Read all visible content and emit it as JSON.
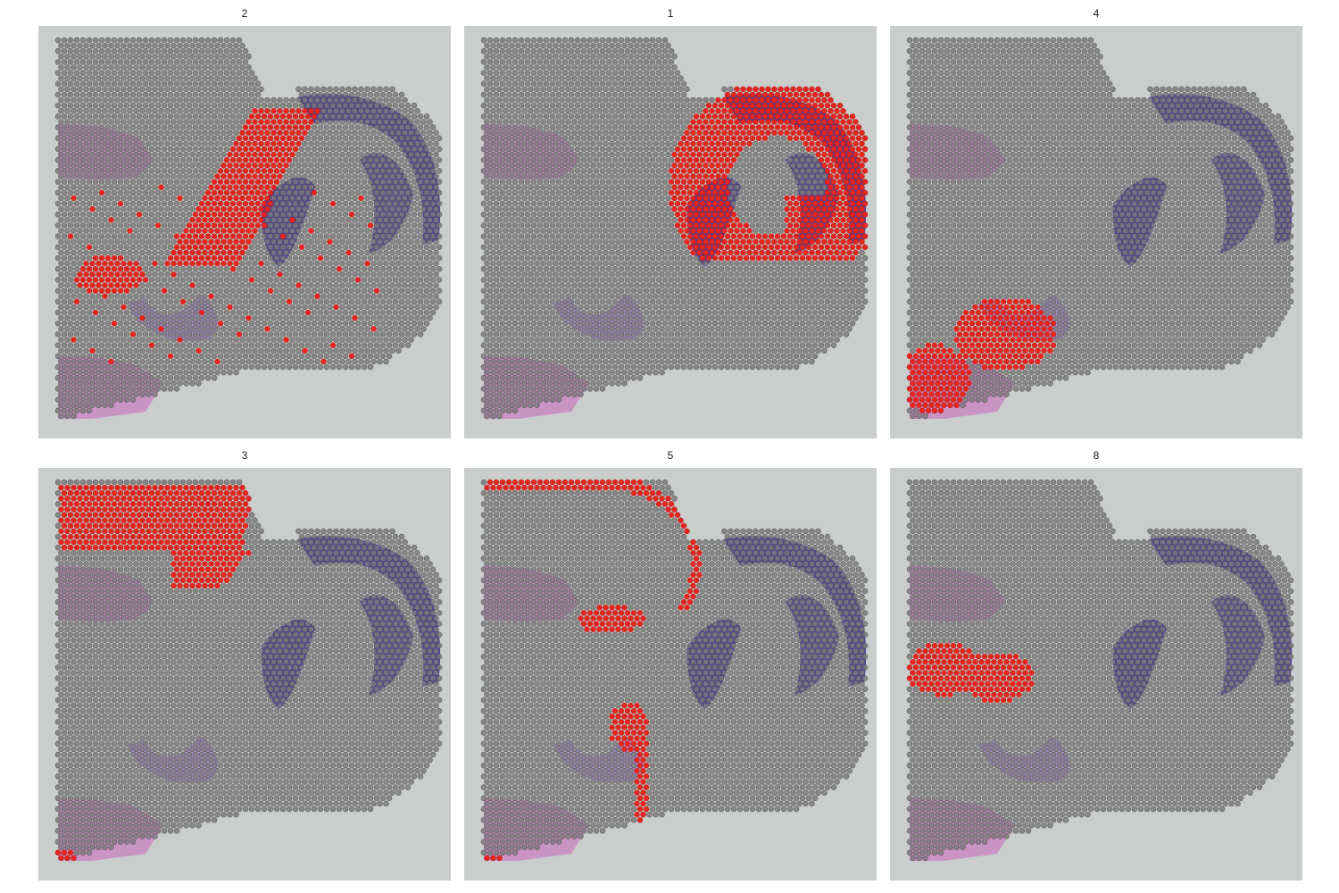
{
  "chart_data": {
    "type": "scatter",
    "description_kind": "spatial-transcriptomics-cluster-highlight",
    "colors": {
      "highlight": "#e8261f",
      "spot": "#7d7a7c",
      "spot_stroke": "#4a4a4a",
      "background": "#c9cdcb",
      "tissue_pink": "#c984c2",
      "tissue_purple": "#4a3a9a"
    },
    "panels": [
      {
        "title": "2"
      },
      {
        "title": "1"
      },
      {
        "title": "4"
      },
      {
        "title": "3"
      },
      {
        "title": "5"
      },
      {
        "title": "8"
      }
    ]
  }
}
